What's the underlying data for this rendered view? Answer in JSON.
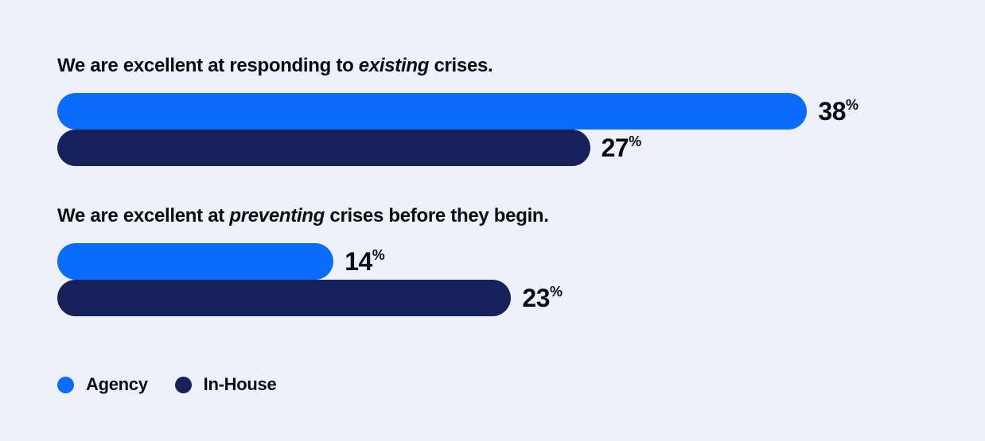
{
  "colors": {
    "background": "#EEF1FA",
    "agency": "#0B6CFB",
    "in_house": "#16215C",
    "text": "#0B0C10"
  },
  "value_suffix": "%",
  "chart_data": {
    "type": "bar",
    "orientation": "horizontal",
    "unit": "percent",
    "xlim": [
      0,
      40
    ],
    "grid": false,
    "legend_position": "bottom-left",
    "series_names": [
      "Agency",
      "In-House"
    ],
    "groups": [
      {
        "title": "We are excellent at responding to existing crises.",
        "title_parts": {
          "pre": "We are excellent at responding to ",
          "emphasis": "existing",
          "post": " crises."
        },
        "bars": [
          {
            "series": "Agency",
            "value": 38,
            "label": "38"
          },
          {
            "series": "In-House",
            "value": 27,
            "label": "27"
          }
        ]
      },
      {
        "title": "We are excellent at preventing crises before they begin.",
        "title_parts": {
          "pre": "We are excellent at ",
          "emphasis": "preventing",
          "post": " crises before they begin."
        },
        "bars": [
          {
            "series": "Agency",
            "value": 14,
            "label": "14"
          },
          {
            "series": "In-House",
            "value": 23,
            "label": "23"
          }
        ]
      }
    ],
    "legend": [
      {
        "label": "Agency",
        "color": "#0B6CFB"
      },
      {
        "label": "In-House",
        "color": "#16215C"
      }
    ]
  }
}
